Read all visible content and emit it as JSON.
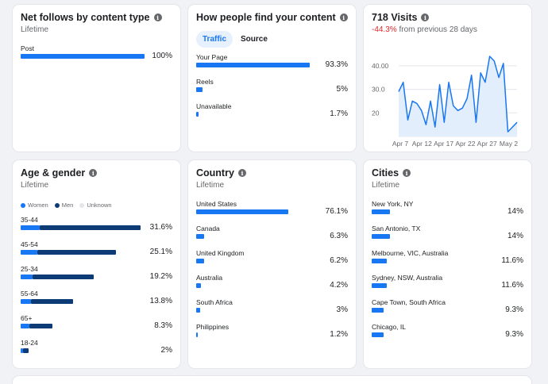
{
  "net_follows": {
    "title": "Net follows by content type",
    "subtitle": "Lifetime",
    "rows": [
      {
        "label": "Post",
        "value": 100,
        "pct": "100%"
      }
    ]
  },
  "find_content": {
    "title": "How people find your content",
    "tabs": [
      {
        "label": "Traffic"
      },
      {
        "label": "Source"
      }
    ],
    "rows": [
      {
        "label": "Your Page",
        "value": 93.3,
        "pct": "93.3%"
      },
      {
        "label": "Reels",
        "value": 5,
        "pct": "5%"
      },
      {
        "label": "Unavailable",
        "value": 1.7,
        "pct": "1.7%"
      }
    ]
  },
  "visits": {
    "title": "718 Visits",
    "change": "-44.3%",
    "change_suffix": "from previous 28 days",
    "colors": {
      "line": "#1877f2",
      "area": "#e3eefd"
    }
  },
  "chart_data": {
    "type": "area",
    "title": "718 Visits",
    "x_ticks": [
      "Apr 7",
      "Apr 12",
      "Apr 17",
      "Apr 22",
      "Apr 27",
      "May 2"
    ],
    "y_ticks": [
      "40.00",
      "30.0",
      "20"
    ],
    "ylim": [
      10,
      45
    ],
    "values": [
      29,
      33,
      17,
      25,
      24,
      21,
      15,
      25,
      14,
      32,
      16,
      33,
      23,
      21,
      22,
      26,
      36,
      16,
      37,
      33,
      44,
      42,
      35,
      41,
      12,
      14,
      16
    ],
    "grid": true
  },
  "age_gender": {
    "title": "Age & gender",
    "subtitle": "Lifetime",
    "legend": [
      {
        "label": "Women",
        "color": "#1877f2"
      },
      {
        "label": "Men",
        "color": "#0d3b75"
      },
      {
        "label": "Unknown",
        "color": "#e4e6eb"
      }
    ],
    "rows": [
      {
        "label": "35-44",
        "women": 5.1,
        "men": 26.5,
        "pct": "31.6%"
      },
      {
        "label": "45-54",
        "women": 4.4,
        "men": 20.7,
        "pct": "25.1%"
      },
      {
        "label": "25-34",
        "women": 3.1,
        "men": 16.1,
        "pct": "19.2%"
      },
      {
        "label": "55-64",
        "women": 2.7,
        "men": 11.1,
        "pct": "13.8%"
      },
      {
        "label": "65+",
        "women": 2.3,
        "men": 6.0,
        "pct": "8.3%"
      },
      {
        "label": "18-24",
        "women": 0.6,
        "men": 1.4,
        "pct": "2%"
      }
    ]
  },
  "country": {
    "title": "Country",
    "subtitle": "Lifetime",
    "rows": [
      {
        "label": "United States",
        "value": 76.1,
        "pct": "76.1%"
      },
      {
        "label": "Canada",
        "value": 6.3,
        "pct": "6.3%"
      },
      {
        "label": "United Kingdom",
        "value": 6.2,
        "pct": "6.2%"
      },
      {
        "label": "Australia",
        "value": 4.2,
        "pct": "4.2%"
      },
      {
        "label": "South Africa",
        "value": 3,
        "pct": "3%"
      },
      {
        "label": "Philippines",
        "value": 1.2,
        "pct": "1.2%"
      }
    ]
  },
  "cities": {
    "title": "Cities",
    "subtitle": "Lifetime",
    "rows": [
      {
        "label": "New York, NY",
        "value": 14,
        "pct": "14%"
      },
      {
        "label": "San Antonio, TX",
        "value": 14,
        "pct": "14%"
      },
      {
        "label": "Melbourne, VIC, Australia",
        "value": 11.6,
        "pct": "11.6%"
      },
      {
        "label": "Sydney, NSW, Australia",
        "value": 11.6,
        "pct": "11.6%"
      },
      {
        "label": "Cape Town, South Africa",
        "value": 9.3,
        "pct": "9.3%"
      },
      {
        "label": "Chicago, IL",
        "value": 9.3,
        "pct": "9.3%"
      }
    ]
  }
}
